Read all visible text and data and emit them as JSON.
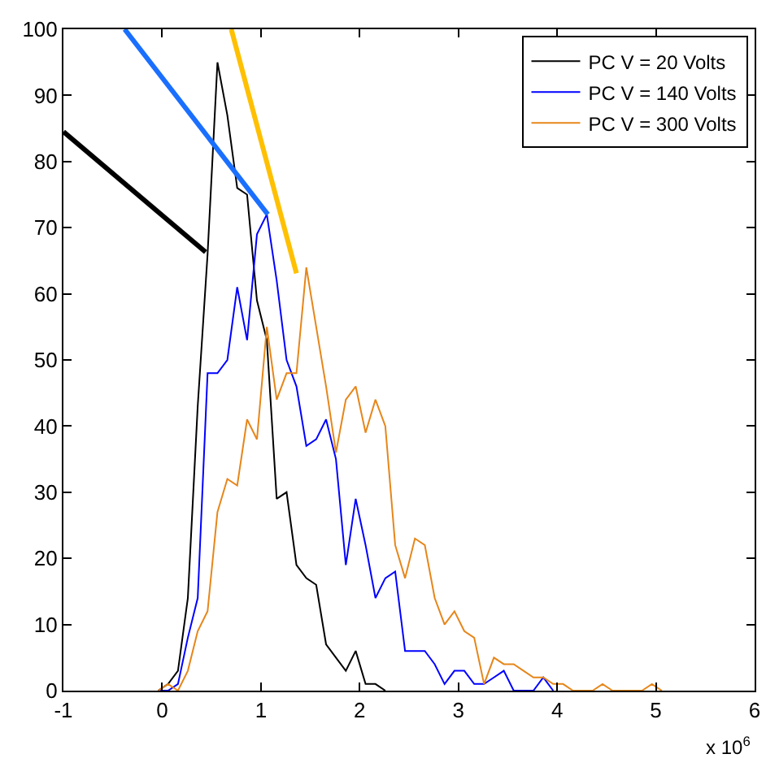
{
  "chart_data": {
    "type": "line",
    "legend": "top right",
    "marker": "none",
    "line_style": "solid",
    "xlim": [
      -1,
      6
    ],
    "xticks": [
      -1,
      0,
      1,
      2,
      3,
      4,
      5,
      6
    ],
    "ylim": [
      0,
      100
    ],
    "yticks": [
      0,
      10,
      20,
      30,
      40,
      50,
      60,
      70,
      80,
      90,
      100
    ],
    "annotations": [
      "x 10$^{6}$"
    ],
    "series": [
      {
        "name": "PC V = 20 Volts",
        "color": "#000000",
        "x": [
          -0.04,
          0.06,
          0.16,
          0.26,
          0.36,
          0.46,
          0.56,
          0.66,
          0.76,
          0.86,
          0.96,
          1.06,
          1.16,
          1.26,
          1.36,
          1.46,
          1.56,
          1.66,
          1.76,
          1.86,
          1.96,
          2.06,
          2.16,
          2.26
        ],
        "values": [
          0,
          1,
          3,
          14,
          43,
          66,
          95,
          87,
          76,
          75,
          59,
          53,
          29,
          30,
          19,
          17,
          16,
          7,
          5,
          3,
          6,
          1,
          1,
          0
        ]
      },
      {
        "name": "PC V = 140 Volts",
        "color": "#0000ff",
        "x": [
          -0.04,
          0.06,
          0.16,
          0.26,
          0.36,
          0.46,
          0.56,
          0.66,
          0.76,
          0.86,
          0.96,
          1.06,
          1.16,
          1.26,
          1.36,
          1.46,
          1.56,
          1.66,
          1.76,
          1.86,
          1.96,
          2.06,
          2.16,
          2.26,
          2.36,
          2.46,
          2.56,
          2.66,
          2.76,
          2.86,
          2.96,
          3.06,
          3.16,
          3.26,
          3.36,
          3.46,
          3.56,
          3.66,
          3.76,
          3.86,
          3.96
        ],
        "values": [
          0,
          0,
          1,
          8,
          14,
          48,
          48,
          50,
          61,
          53,
          69,
          72,
          62,
          50,
          46,
          37,
          38,
          41,
          35,
          19,
          29,
          22,
          14,
          17,
          18,
          6,
          6,
          6,
          4,
          1,
          3,
          3,
          1,
          1,
          2,
          3,
          0,
          0,
          0,
          2,
          0
        ]
      },
      {
        "name": "PC V = 300 Volts",
        "color": "#e6861a",
        "x": [
          -0.04,
          0.06,
          0.16,
          0.26,
          0.36,
          0.46,
          0.56,
          0.66,
          0.76,
          0.86,
          0.96,
          1.06,
          1.16,
          1.26,
          1.36,
          1.46,
          1.56,
          1.66,
          1.76,
          1.86,
          1.96,
          2.06,
          2.16,
          2.26,
          2.36,
          2.46,
          2.56,
          2.66,
          2.76,
          2.86,
          2.96,
          3.06,
          3.16,
          3.26,
          3.36,
          3.46,
          3.56,
          3.66,
          3.76,
          3.86,
          3.96,
          4.06,
          4.16,
          4.26,
          4.36,
          4.46,
          4.56,
          4.66,
          4.76,
          4.86,
          4.96,
          5.06
        ],
        "values": [
          0,
          1,
          0,
          3,
          9,
          12,
          27,
          32,
          31,
          41,
          38,
          55,
          44,
          48,
          48,
          64,
          55,
          46,
          36,
          44,
          46,
          39,
          44,
          40,
          22,
          17,
          23,
          22,
          14,
          10,
          12,
          9,
          8,
          1,
          5,
          4,
          4,
          3,
          2,
          2,
          1,
          1,
          0,
          0,
          0,
          1,
          0,
          0,
          0,
          0,
          1,
          0
        ]
      },
      {
        "color": "#000000",
        "x": [
          -1,
          0.44
        ],
        "values": [
          84.5,
          66.3
        ]
      },
      {
        "color": "#1a6fff",
        "x": [
          -0.38,
          1.07
        ],
        "values": [
          100,
          72
        ]
      },
      {
        "color": "#ffc000",
        "x": [
          0.7,
          1.36
        ],
        "values": [
          100,
          63.1
        ]
      }
    ]
  }
}
